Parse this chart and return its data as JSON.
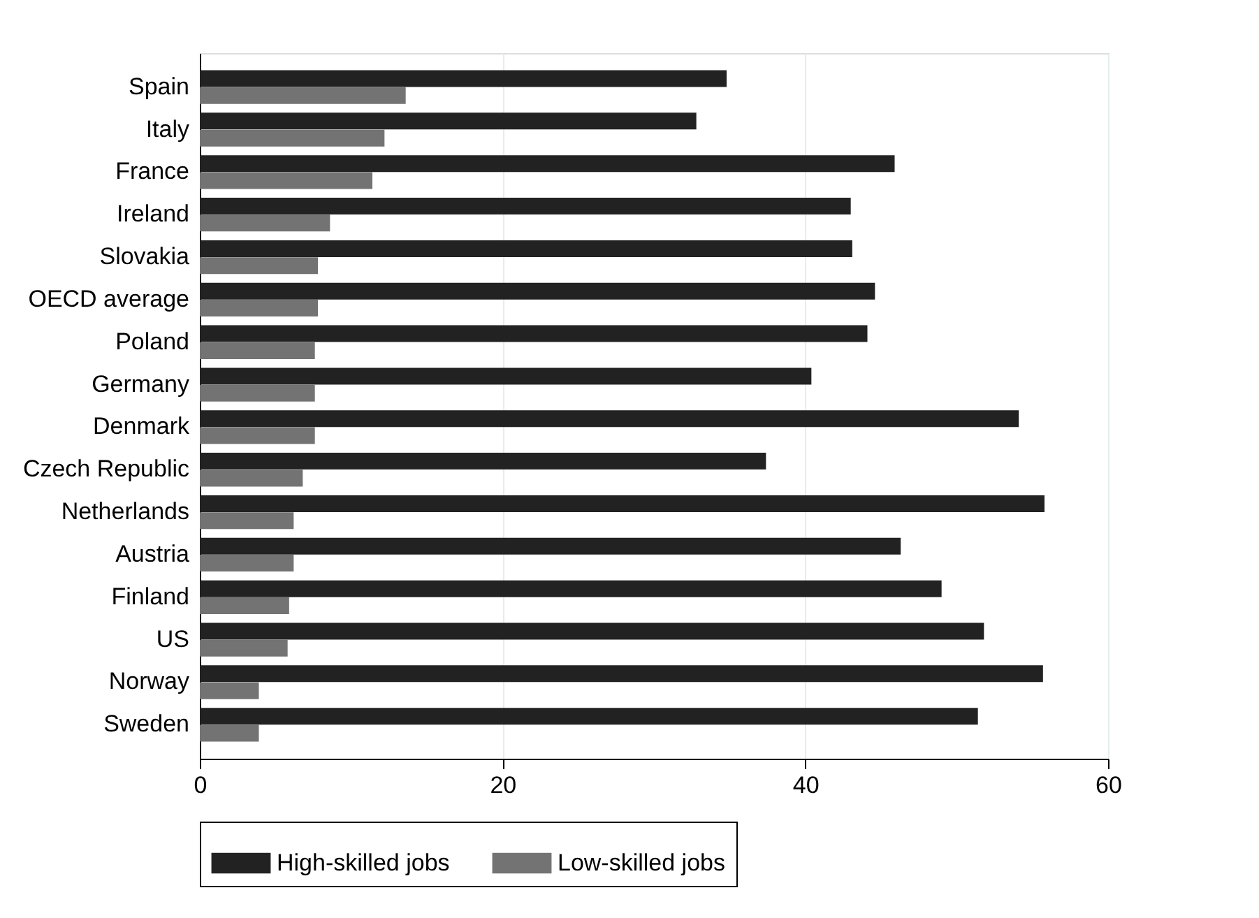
{
  "chart_data": {
    "type": "bar",
    "orientation": "horizontal",
    "categories": [
      "Spain",
      "Italy",
      "France",
      "Ireland",
      "Slovakia",
      "OECD average",
      "Poland",
      "Germany",
      "Denmark",
      "Czech Republic",
      "Netherlands",
      "Austria",
      "Finland",
      "US",
      "Norway",
      "Sweden"
    ],
    "series": [
      {
        "name": "High-skilled jobs",
        "color": "#222222",
        "values": [
          34.8,
          32.8,
          45.9,
          43.0,
          43.1,
          44.6,
          44.1,
          40.4,
          54.1,
          37.4,
          55.8,
          46.3,
          49.0,
          51.8,
          55.7,
          51.4
        ]
      },
      {
        "name": "Low-skilled jobs",
        "color": "#737373",
        "values": [
          13.6,
          12.2,
          11.4,
          8.6,
          7.8,
          7.8,
          7.6,
          7.6,
          7.6,
          6.8,
          6.2,
          6.2,
          5.9,
          5.8,
          3.9,
          3.9
        ]
      }
    ],
    "xlim": [
      0,
      60
    ],
    "xticks": [
      0,
      20,
      40,
      60
    ],
    "grid": "x",
    "legend": "bottom"
  }
}
